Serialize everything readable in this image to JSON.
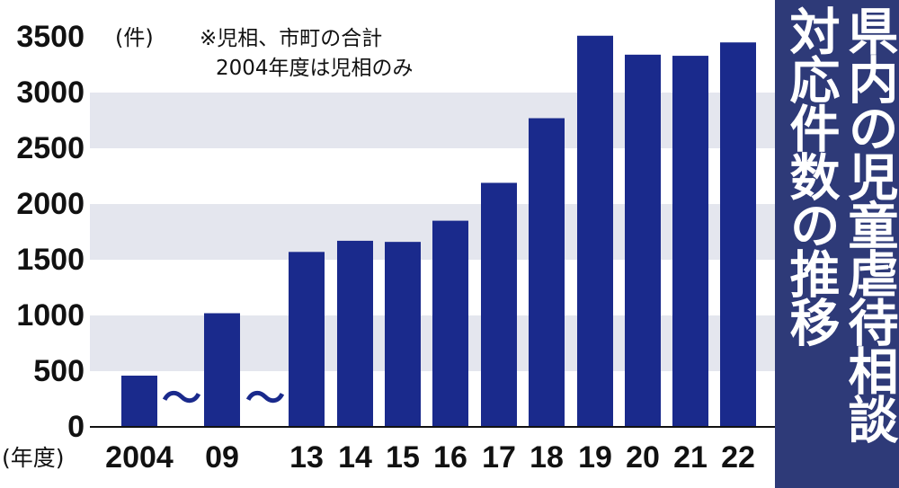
{
  "chart_data": {
    "type": "bar",
    "title_lines": [
      "県内の児童虐待相談",
      "対応件数の推移"
    ],
    "ylabel": "(件)",
    "xlabel": "(年度)",
    "note_lines": [
      "※児相、市町の合計",
      "2004年度は児相のみ"
    ],
    "ylim": [
      0,
      3500
    ],
    "yticks": [
      0,
      500,
      1000,
      1500,
      2000,
      2500,
      3000,
      3500
    ],
    "categories": [
      "2004",
      "09",
      "13",
      "14",
      "15",
      "16",
      "17",
      "18",
      "19",
      "20",
      "21",
      "22"
    ],
    "values": [
      460,
      1020,
      1570,
      1670,
      1660,
      1850,
      2190,
      2770,
      3510,
      3340,
      3330,
      3450
    ],
    "break_marks": [
      "～",
      "～"
    ],
    "grid": "alternating horizontal bands",
    "colors": {
      "bar": "#1a2a8c",
      "band": "#e4e6ee",
      "title_bg": "#2e3a78",
      "title_text": "#ffffff"
    }
  }
}
